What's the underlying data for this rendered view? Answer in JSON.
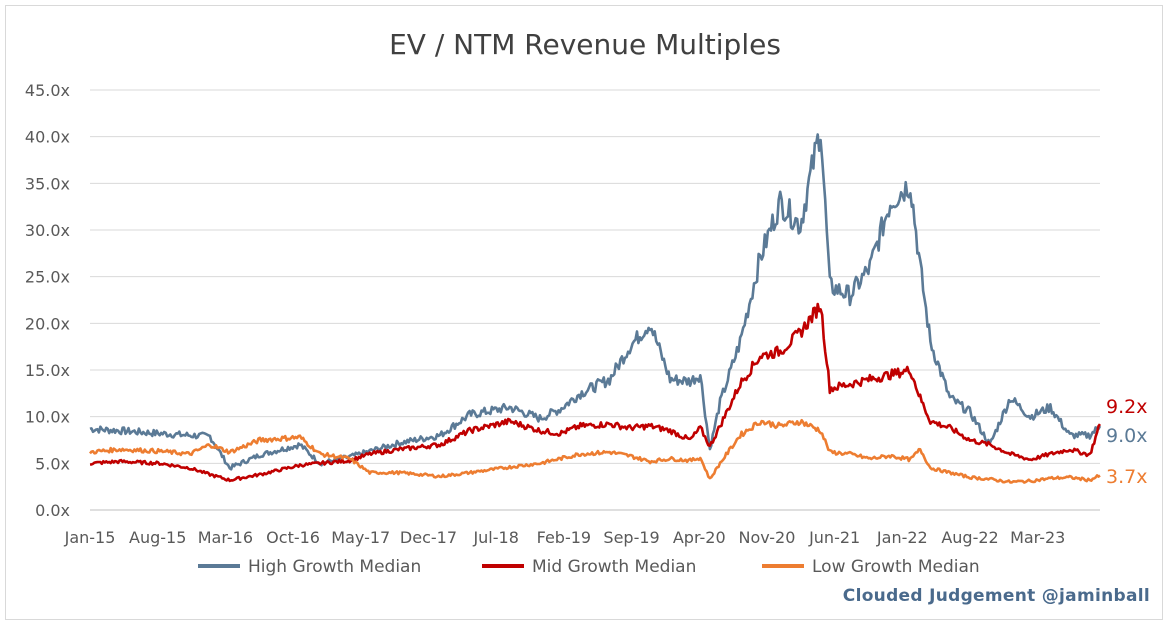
{
  "chart_data": {
    "type": "line",
    "title": "EV / NTM Revenue Multiples",
    "xlabel": "",
    "ylabel": "",
    "ylim": [
      0,
      45
    ],
    "y_ticks": [
      "0.0x",
      "5.0x",
      "10.0x",
      "15.0x",
      "20.0x",
      "25.0x",
      "30.0x",
      "35.0x",
      "40.0x",
      "45.0x"
    ],
    "x_ticks": [
      "Jan-15",
      "Aug-15",
      "Mar-16",
      "Oct-16",
      "May-17",
      "Dec-17",
      "Jul-18",
      "Feb-19",
      "Sep-19",
      "Apr-20",
      "Nov-20",
      "Jun-21",
      "Jan-22",
      "Aug-22",
      "Mar-23"
    ],
    "grid": "horizontal",
    "legend_position": "bottom",
    "series": [
      {
        "name": "High Growth Median",
        "color": "#5b7a96",
        "end_label": "9.0x",
        "x": [
          "2015-01",
          "2015-04",
          "2015-08",
          "2015-11",
          "2016-01",
          "2016-03",
          "2016-06",
          "2016-10",
          "2016-12",
          "2017-03",
          "2017-05",
          "2017-08",
          "2017-12",
          "2018-03",
          "2018-07",
          "2018-10",
          "2018-12",
          "2019-02",
          "2019-05",
          "2019-07",
          "2019-09",
          "2019-11",
          "2020-01",
          "2020-02",
          "2020-03",
          "2020-04",
          "2020-06",
          "2020-08",
          "2020-10",
          "2020-12",
          "2021-02",
          "2021-03",
          "2021-05",
          "2021-07",
          "2021-09",
          "2021-11",
          "2021-12",
          "2022-01",
          "2022-03",
          "2022-05",
          "2022-07",
          "2022-09",
          "2022-11",
          "2023-01",
          "2023-03",
          "2023-05",
          "2023-06"
        ],
        "values": [
          8.7,
          8.5,
          8.2,
          8.0,
          7.9,
          4.5,
          5.9,
          7.0,
          5.0,
          5.7,
          6.3,
          7.2,
          8.0,
          10.2,
          11.0,
          9.8,
          10.8,
          12.5,
          14.0,
          17.5,
          20.0,
          14.0,
          13.8,
          14.5,
          6.5,
          11.5,
          18.0,
          27.0,
          33.0,
          30.5,
          41.0,
          24.0,
          23.0,
          26.0,
          33.0,
          35.0,
          26.0,
          18.0,
          12.0,
          10.5,
          7.0,
          12.0,
          10.0,
          11.0,
          8.0,
          8.0,
          9.0
        ]
      },
      {
        "name": "Mid Growth Median",
        "color": "#c00000",
        "end_label": "9.2x",
        "x": [
          "2015-01",
          "2015-04",
          "2015-08",
          "2015-11",
          "2016-01",
          "2016-03",
          "2016-06",
          "2016-10",
          "2016-12",
          "2017-03",
          "2017-05",
          "2017-08",
          "2017-12",
          "2018-03",
          "2018-07",
          "2018-10",
          "2018-12",
          "2019-02",
          "2019-05",
          "2019-07",
          "2019-09",
          "2019-11",
          "2020-01",
          "2020-02",
          "2020-03",
          "2020-04",
          "2020-06",
          "2020-08",
          "2020-10",
          "2020-12",
          "2021-02",
          "2021-03",
          "2021-05",
          "2021-07",
          "2021-09",
          "2021-11",
          "2021-12",
          "2022-01",
          "2022-03",
          "2022-05",
          "2022-07",
          "2022-09",
          "2022-11",
          "2023-01",
          "2023-03",
          "2023-05",
          "2023-06"
        ],
        "values": [
          5.0,
          5.2,
          5.0,
          4.5,
          3.8,
          3.2,
          3.8,
          4.8,
          5.0,
          5.3,
          6.0,
          6.5,
          7.0,
          8.5,
          9.5,
          8.5,
          8.2,
          9.0,
          9.2,
          8.8,
          9.0,
          8.5,
          7.5,
          8.8,
          6.8,
          9.0,
          13.5,
          16.5,
          17.0,
          19.0,
          22.0,
          13.0,
          13.5,
          14.0,
          14.5,
          15.0,
          12.0,
          9.5,
          8.8,
          7.5,
          7.0,
          6.0,
          5.4,
          6.0,
          6.5,
          5.9,
          9.2
        ]
      },
      {
        "name": "Low Growth Median",
        "color": "#ed7d31",
        "end_label": "3.7x",
        "x": [
          "2015-01",
          "2015-04",
          "2015-08",
          "2015-11",
          "2016-01",
          "2016-03",
          "2016-06",
          "2016-10",
          "2016-12",
          "2017-03",
          "2017-05",
          "2017-08",
          "2017-12",
          "2018-03",
          "2018-07",
          "2018-10",
          "2018-12",
          "2019-02",
          "2019-05",
          "2019-07",
          "2019-09",
          "2019-11",
          "2020-01",
          "2020-02",
          "2020-03",
          "2020-04",
          "2020-06",
          "2020-08",
          "2020-10",
          "2020-12",
          "2021-02",
          "2021-03",
          "2021-05",
          "2021-07",
          "2021-09",
          "2021-11",
          "2021-12",
          "2022-01",
          "2022-03",
          "2022-05",
          "2022-07",
          "2022-09",
          "2022-11",
          "2023-01",
          "2023-03",
          "2023-05",
          "2023-06"
        ],
        "values": [
          6.2,
          6.5,
          6.3,
          6.0,
          7.0,
          6.2,
          7.5,
          7.8,
          6.0,
          5.5,
          4.0,
          4.0,
          3.6,
          4.0,
          4.6,
          5.0,
          5.5,
          6.0,
          6.2,
          5.8,
          5.2,
          5.5,
          5.3,
          5.6,
          3.3,
          5.0,
          8.0,
          9.5,
          9.0,
          9.5,
          8.5,
          6.2,
          6.0,
          5.5,
          5.8,
          5.4,
          6.5,
          4.5,
          4.0,
          3.5,
          3.3,
          3.0,
          3.1,
          3.4,
          3.5,
          3.2,
          3.7
        ]
      }
    ]
  },
  "credit": "Clouded Judgement @jaminball"
}
